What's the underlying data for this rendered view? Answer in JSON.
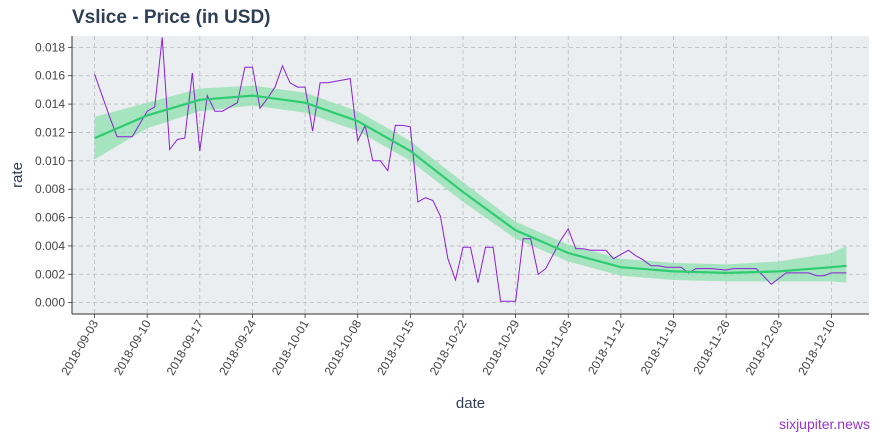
{
  "title": "Vslice - Price (in USD)",
  "watermark": "sixjupiter.news",
  "colors": {
    "panel_bg": "#ebeef0",
    "grid": "#b8bcc0",
    "price_line": "#8b1fd6",
    "trend_line": "#2ecc71",
    "band": "#8fe0b0",
    "axis_text": "#2f3f55",
    "watermark": "#9933cc"
  },
  "chart_data": {
    "type": "line",
    "title": "Vslice - Price (in USD)",
    "xlabel": "date",
    "ylabel": "rate",
    "grid": true,
    "xlim": [
      "2018-08-31",
      "2018-12-15"
    ],
    "ylim": [
      -0.0008,
      0.0188
    ],
    "x_ticks": [
      "2018-09-03",
      "2018-09-10",
      "2018-09-17",
      "2018-09-24",
      "2018-10-01",
      "2018-10-08",
      "2018-10-15",
      "2018-10-22",
      "2018-10-29",
      "2018-11-05",
      "2018-11-12",
      "2018-11-19",
      "2018-11-26",
      "2018-12-03",
      "2018-12-10"
    ],
    "y_ticks": [
      "0.000",
      "0.002",
      "0.004",
      "0.006",
      "0.008",
      "0.010",
      "0.012",
      "0.014",
      "0.016",
      "0.018"
    ],
    "series": [
      {
        "kind": "price",
        "x": [
          "2018-09-03",
          "2018-09-05",
          "2018-09-06",
          "2018-09-08",
          "2018-09-10",
          "2018-09-11",
          "2018-09-12",
          "2018-09-13",
          "2018-09-14",
          "2018-09-15",
          "2018-09-16",
          "2018-09-17",
          "2018-09-18",
          "2018-09-19",
          "2018-09-20",
          "2018-09-21",
          "2018-09-22",
          "2018-09-23",
          "2018-09-24",
          "2018-09-25",
          "2018-09-26",
          "2018-09-27",
          "2018-09-28",
          "2018-09-29",
          "2018-09-30",
          "2018-10-01",
          "2018-10-02",
          "2018-10-03",
          "2018-10-04",
          "2018-10-05",
          "2018-10-06",
          "2018-10-07",
          "2018-10-08",
          "2018-10-09",
          "2018-10-10",
          "2018-10-11",
          "2018-10-12",
          "2018-10-13",
          "2018-10-14",
          "2018-10-15",
          "2018-10-16",
          "2018-10-17",
          "2018-10-18",
          "2018-10-19",
          "2018-10-20",
          "2018-10-21",
          "2018-10-22",
          "2018-10-23",
          "2018-10-24",
          "2018-10-25",
          "2018-10-26",
          "2018-10-27",
          "2018-10-28",
          "2018-10-29",
          "2018-10-30",
          "2018-10-31",
          "2018-11-01",
          "2018-11-02",
          "2018-11-03",
          "2018-11-04",
          "2018-11-05",
          "2018-11-06",
          "2018-11-07",
          "2018-11-08",
          "2018-11-10",
          "2018-11-11",
          "2018-11-12",
          "2018-11-13",
          "2018-11-14",
          "2018-11-15",
          "2018-11-16",
          "2018-11-17",
          "2018-11-18",
          "2018-11-19",
          "2018-11-20",
          "2018-11-21",
          "2018-11-22",
          "2018-11-24",
          "2018-11-26",
          "2018-11-27",
          "2018-11-28",
          "2018-11-30",
          "2018-12-02",
          "2018-12-04",
          "2018-12-06",
          "2018-12-07",
          "2018-12-08",
          "2018-12-09",
          "2018-12-10",
          "2018-12-12"
        ],
        "y": [
          0.0161,
          0.0131,
          0.0117,
          0.0117,
          0.0135,
          0.0138,
          0.0187,
          0.0108,
          0.0115,
          0.0116,
          0.0162,
          0.0107,
          0.0146,
          0.0135,
          0.0135,
          0.0138,
          0.0141,
          0.0166,
          0.0166,
          0.0137,
          0.0144,
          0.0152,
          0.0167,
          0.0155,
          0.0152,
          0.0152,
          0.0121,
          0.0155,
          0.0155,
          0.0156,
          0.0157,
          0.0158,
          0.0114,
          0.0125,
          0.01,
          0.01,
          0.0093,
          0.0125,
          0.0125,
          0.0124,
          0.0071,
          0.0074,
          0.0072,
          0.0061,
          0.0031,
          0.0016,
          0.0039,
          0.0039,
          0.0014,
          0.0039,
          0.0039,
          0.0001,
          0.0001,
          0.0001,
          0.0045,
          0.0045,
          0.002,
          0.0024,
          0.0034,
          0.0044,
          0.0052,
          0.0038,
          0.0038,
          0.0037,
          0.0037,
          0.0031,
          0.0034,
          0.0037,
          0.0033,
          0.003,
          0.0026,
          0.0026,
          0.0025,
          0.0025,
          0.0025,
          0.0021,
          0.0024,
          0.0024,
          0.0023,
          0.0024,
          0.0024,
          0.0024,
          0.0013,
          0.0021,
          0.0021,
          0.0021,
          0.0019,
          0.0019,
          0.0021,
          0.0021
        ]
      },
      {
        "kind": "smooth",
        "x": [
          "2018-09-03",
          "2018-09-10",
          "2018-09-17",
          "2018-09-24",
          "2018-10-01",
          "2018-10-08",
          "2018-10-15",
          "2018-10-22",
          "2018-10-29",
          "2018-11-05",
          "2018-11-12",
          "2018-11-19",
          "2018-11-26",
          "2018-12-03",
          "2018-12-10",
          "2018-12-12"
        ],
        "y": [
          0.0116,
          0.0132,
          0.0143,
          0.0146,
          0.0141,
          0.0128,
          0.0107,
          0.0078,
          0.0051,
          0.0035,
          0.0025,
          0.0022,
          0.0021,
          0.0022,
          0.0025,
          0.0026
        ],
        "lower": [
          0.0101,
          0.0123,
          0.0135,
          0.0139,
          0.0134,
          0.0121,
          0.01,
          0.0071,
          0.0045,
          0.0029,
          0.0019,
          0.0016,
          0.0015,
          0.0015,
          0.0015,
          0.0014
        ],
        "upper": [
          0.0131,
          0.0141,
          0.0151,
          0.0153,
          0.0148,
          0.0135,
          0.0114,
          0.0085,
          0.0057,
          0.0041,
          0.0031,
          0.0028,
          0.0027,
          0.0029,
          0.0035,
          0.004
        ]
      }
    ]
  }
}
